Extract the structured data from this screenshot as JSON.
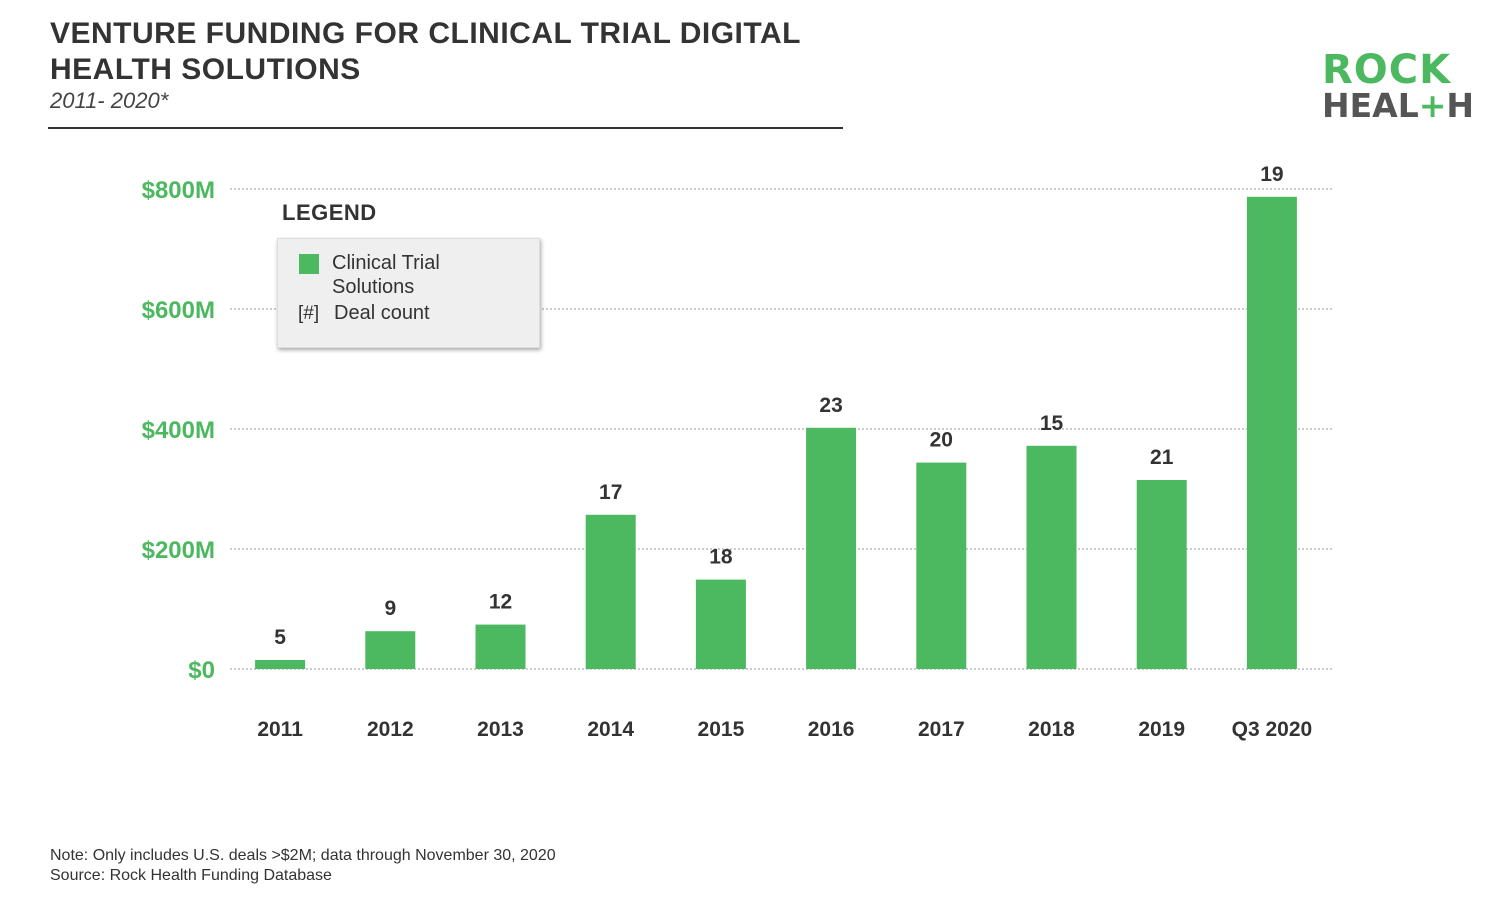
{
  "header": {
    "title": "VENTURE FUNDING FOR CLINICAL TRIAL DIGITAL HEALTH SOLUTIONS",
    "subtitle": "2011- 2020*"
  },
  "logo": {
    "line1": "ROCK",
    "line2_start": "HEAL",
    "line2_plus": "+",
    "line2_end": "H"
  },
  "legend": {
    "title": "LEGEND",
    "series_label": "Clinical Trial Solutions",
    "deal_marker": "[#]",
    "deal_label": "Deal count"
  },
  "chart_data": {
    "type": "bar",
    "categories": [
      "2011",
      "2012",
      "2013",
      "2014",
      "2015",
      "2016",
      "2017",
      "2018",
      "2019",
      "Q3 2020"
    ],
    "series": [
      {
        "name": "Clinical Trial Solutions",
        "values": [
          15,
          63,
          74,
          257,
          149,
          402,
          344,
          372,
          315,
          787
        ],
        "deal_counts": [
          "5",
          "9",
          "12",
          "17",
          "18",
          "23",
          "20",
          "15",
          "21",
          "19"
        ]
      }
    ],
    "ylim": [
      0,
      800
    ],
    "yticks": [
      {
        "value": 0,
        "label": "$0"
      },
      {
        "value": 200,
        "label": "$200M"
      },
      {
        "value": 400,
        "label": "$400M"
      },
      {
        "value": 600,
        "label": "$600M"
      },
      {
        "value": 800,
        "label": "$800M"
      }
    ],
    "grid": true,
    "legend_position": "top-left",
    "colors": {
      "bar": "#4cb85f",
      "tick_label": "#4cb85f",
      "text": "#333333",
      "grid": "#999999"
    }
  },
  "footer": {
    "note": "Note: Only includes U.S. deals >$2M; data through November 30, 2020",
    "source": "Source: Rock Health Funding Database"
  }
}
